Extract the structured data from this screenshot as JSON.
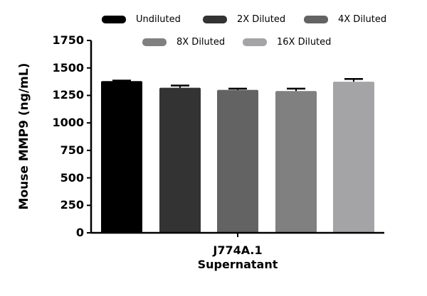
{
  "chart_data": {
    "type": "bar",
    "title": "",
    "xlabel": "J774A.1 Supernatant",
    "xlabel_lines": [
      "J774A.1",
      "Supernatant"
    ],
    "ylabel": "Mouse MMP9 (ng/mL)",
    "ylim": [
      0,
      1750
    ],
    "yticks": [
      0,
      250,
      500,
      750,
      1000,
      1250,
      1500,
      1750
    ],
    "grid": false,
    "legend_position": "top",
    "categories": [
      "J774A.1 Supernatant"
    ],
    "series": [
      {
        "name": "Undiluted",
        "values": [
          1380
        ],
        "error": [
          5
        ],
        "color": "#000000"
      },
      {
        "name": "2X Diluted",
        "values": [
          1320
        ],
        "error": [
          20
        ],
        "color": "#333333"
      },
      {
        "name": "4X Diluted",
        "values": [
          1300
        ],
        "error": [
          12
        ],
        "color": "#636363"
      },
      {
        "name": "8X Diluted",
        "values": [
          1290
        ],
        "error": [
          22
        ],
        "color": "#808080"
      },
      {
        "name": "16X Diluted",
        "values": [
          1375
        ],
        "error": [
          25
        ],
        "color": "#a4a4a6"
      }
    ]
  }
}
